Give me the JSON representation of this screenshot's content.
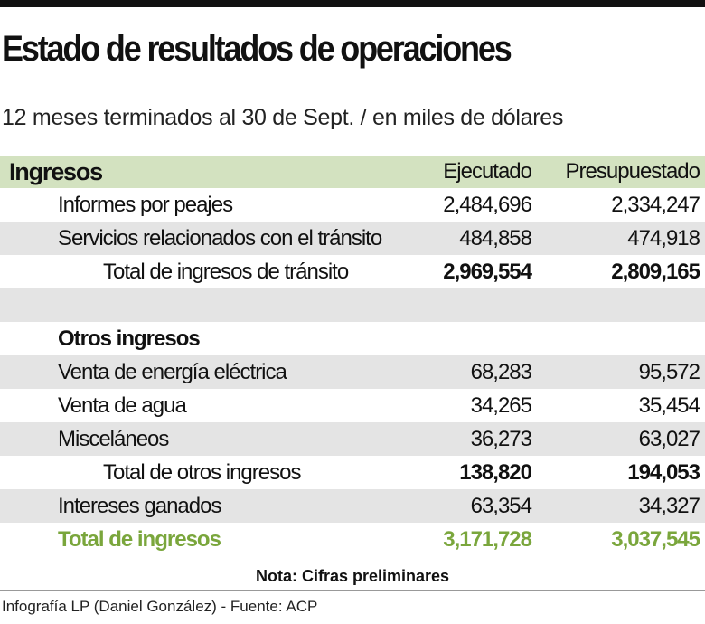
{
  "title": "Estado de resultados de operaciones",
  "subtitle": "12 meses terminados al 30 de Sept. / en miles de dólares",
  "table": {
    "section_label": "Ingresos",
    "col_ejecutado": "Ejecutado",
    "col_presupuestado": "Presupuestado",
    "rows": [
      {
        "label": "Informes por peajes",
        "ejecutado": "2,484,696",
        "presupuestado": "2,334,247"
      },
      {
        "label": "Servicios relacionados con el tránsito",
        "ejecutado": "484,858",
        "presupuestado": "474,918"
      },
      {
        "label": "Total de ingresos de tránsito",
        "ejecutado": "2,969,554",
        "presupuestado": "2,809,165"
      },
      {
        "label": "",
        "ejecutado": "",
        "presupuestado": ""
      },
      {
        "label": "Otros ingresos",
        "ejecutado": "",
        "presupuestado": ""
      },
      {
        "label": "Venta de energía eléctrica",
        "ejecutado": "68,283",
        "presupuestado": "95,572"
      },
      {
        "label": "Venta de agua",
        "ejecutado": "34,265",
        "presupuestado": "35,454"
      },
      {
        "label": "Misceláneos",
        "ejecutado": "36,273",
        "presupuestado": "63,027"
      },
      {
        "label": "Total de otros ingresos",
        "ejecutado": "138,820",
        "presupuestado": "194,053"
      },
      {
        "label": "Intereses ganados",
        "ejecutado": "63,354",
        "presupuestado": "34,327"
      },
      {
        "label": "Total de ingresos",
        "ejecutado": "3,171,728",
        "presupuestado": "3,037,545"
      }
    ]
  },
  "note": "Nota: Cifras preliminares",
  "credit": "Infografía LP (Daniel González) - Fuente: ACP",
  "colors": {
    "header_bg": "#d3e2c0",
    "shade": "#e4e4e4",
    "accent_green": "#7aa63c"
  }
}
